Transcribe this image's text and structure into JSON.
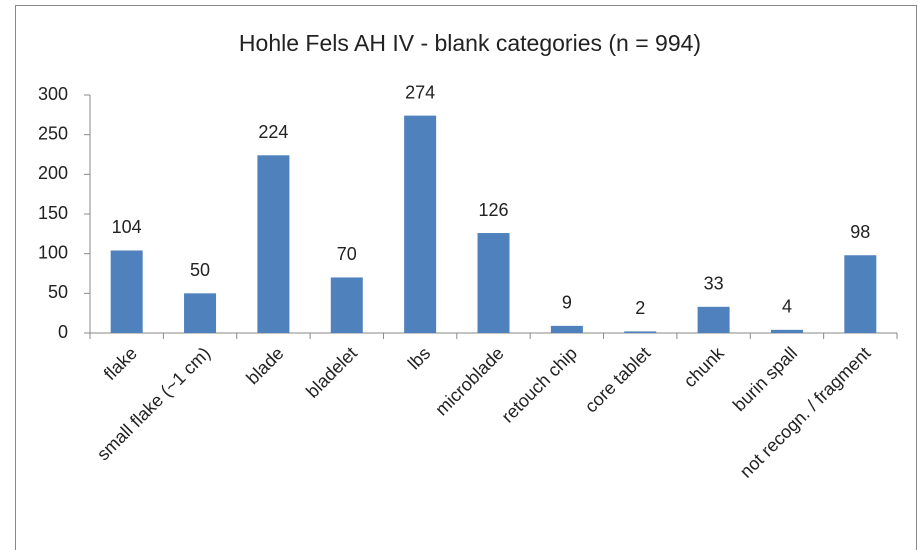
{
  "chart_data": {
    "type": "bar",
    "title": "Hohle Fels AH IV - blank categories (n = 994)",
    "categories": [
      "flake",
      "small flake (~1 cm)",
      "blade",
      "bladelet",
      "lbs",
      "microblade",
      "retouch chip",
      "core tablet",
      "chunk",
      "burin spall",
      "not recogn. / fragment"
    ],
    "values": [
      104,
      50,
      224,
      70,
      274,
      126,
      9,
      2,
      33,
      4,
      98
    ],
    "color": "#4f81bd",
    "ylim": [
      0,
      300
    ],
    "yticks": [
      0,
      50,
      100,
      150,
      200,
      250,
      300
    ],
    "grid": false
  }
}
